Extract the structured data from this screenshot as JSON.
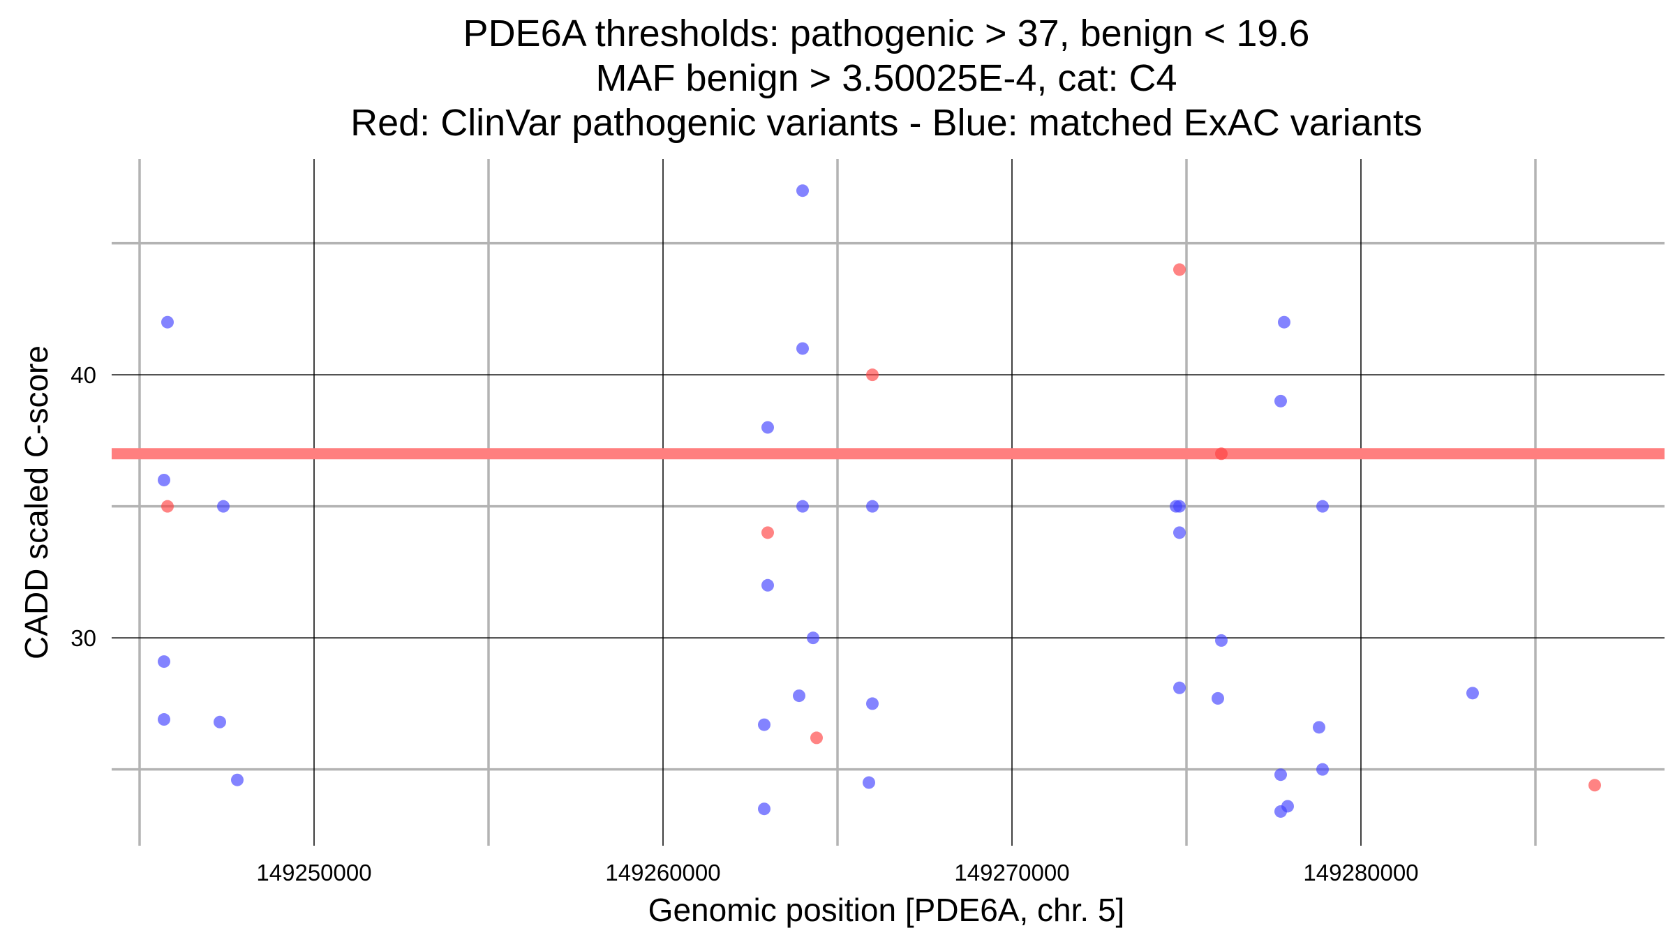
{
  "chart_data": {
    "type": "scatter",
    "title_lines": [
      "PDE6A thresholds: pathogenic > 37, benign < 19.6",
      "MAF benign > 3.50025E-4, cat: C4",
      "Red: ClinVar pathogenic variants - Blue: matched ExAC variants"
    ],
    "xlabel": "Genomic position [PDE6A, chr. 5]",
    "ylabel": "CADD scaled C-score",
    "xlim": [
      149244200,
      149288700
    ],
    "ylim": [
      22.1,
      48.2
    ],
    "x_major_ticks": [
      149250000,
      149260000,
      149270000,
      149280000
    ],
    "x_tick_labels": [
      "149250000",
      "149260000",
      "149270000",
      "149280000"
    ],
    "x_minor_ticks": [
      149245000,
      149255000,
      149265000,
      149275000,
      149285000
    ],
    "y_major_ticks": [
      30,
      40
    ],
    "y_tick_labels": [
      "30",
      "40"
    ],
    "y_minor_ticks": [
      25,
      35,
      45
    ],
    "threshold_line": {
      "y": 37,
      "color": "#ff7f7f",
      "label": "pathogenic threshold"
    },
    "colors": {
      "pathogenic": "#ff4040",
      "benign": "#4040ff"
    },
    "series": [
      {
        "name": "ClinVar pathogenic variants",
        "color": "#ff4040",
        "points": [
          [
            149245800,
            35
          ],
          [
            149263000,
            34
          ],
          [
            149264400,
            26.2
          ],
          [
            149266000,
            40
          ],
          [
            149274800,
            44
          ],
          [
            149276000,
            37
          ],
          [
            149286700,
            24.4
          ]
        ]
      },
      {
        "name": "matched ExAC variants",
        "color": "#4040ff",
        "points": [
          [
            149245800,
            42
          ],
          [
            149245700,
            36
          ],
          [
            149247400,
            35
          ],
          [
            149245700,
            29.1
          ],
          [
            149245700,
            26.9
          ],
          [
            149247300,
            26.8
          ],
          [
            149247800,
            24.6
          ],
          [
            149264000,
            47
          ],
          [
            149264000,
            41
          ],
          [
            149263000,
            38
          ],
          [
            149264000,
            35
          ],
          [
            149266000,
            35
          ],
          [
            149263000,
            32
          ],
          [
            149264300,
            30
          ],
          [
            149263900,
            27.8
          ],
          [
            149266000,
            27.5
          ],
          [
            149262900,
            26.7
          ],
          [
            149265900,
            24.5
          ],
          [
            149262900,
            23.5
          ],
          [
            149274800,
            35
          ],
          [
            149274700,
            35
          ],
          [
            149274800,
            34
          ],
          [
            149274800,
            28.1
          ],
          [
            149276000,
            29.9
          ],
          [
            149275900,
            27.7
          ],
          [
            149277800,
            42
          ],
          [
            149277700,
            39
          ],
          [
            149278900,
            35
          ],
          [
            149278800,
            26.6
          ],
          [
            149277700,
            24.8
          ],
          [
            149278900,
            25
          ],
          [
            149277900,
            23.6
          ],
          [
            149277700,
            23.4
          ],
          [
            149283200,
            27.9
          ]
        ]
      }
    ]
  }
}
